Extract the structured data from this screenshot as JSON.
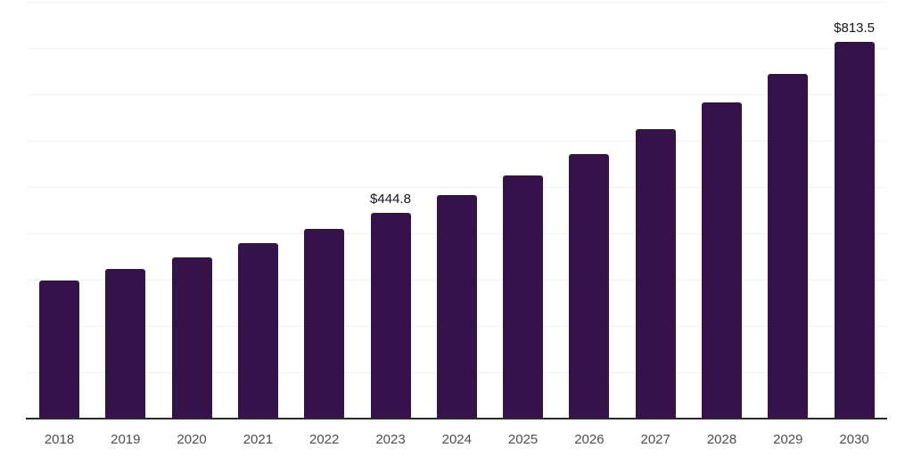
{
  "chart_data": {
    "type": "bar",
    "title": "",
    "xlabel": "",
    "ylabel": "",
    "categories": [
      "2018",
      "2019",
      "2020",
      "2021",
      "2022",
      "2023",
      "2024",
      "2025",
      "2026",
      "2027",
      "2028",
      "2029",
      "2030"
    ],
    "values": [
      299.0,
      324.0,
      349.0,
      378.0,
      410.5,
      444.8,
      483.5,
      525.5,
      572.0,
      625.5,
      683.5,
      744.5,
      813.5
    ],
    "value_labels": {
      "2023": "$444.8",
      "2030": "$813.5"
    },
    "ylim": [
      0,
      900
    ],
    "gridline_step": 100,
    "grid": "horizontal",
    "legend": "none",
    "colors": {
      "bar": "#36124b",
      "gridline": "#f1f1f1",
      "axis_line": "#2a2a2a",
      "tick_label": "#4d4d4d",
      "value_label": "#151515",
      "background": "#ffffff"
    }
  }
}
